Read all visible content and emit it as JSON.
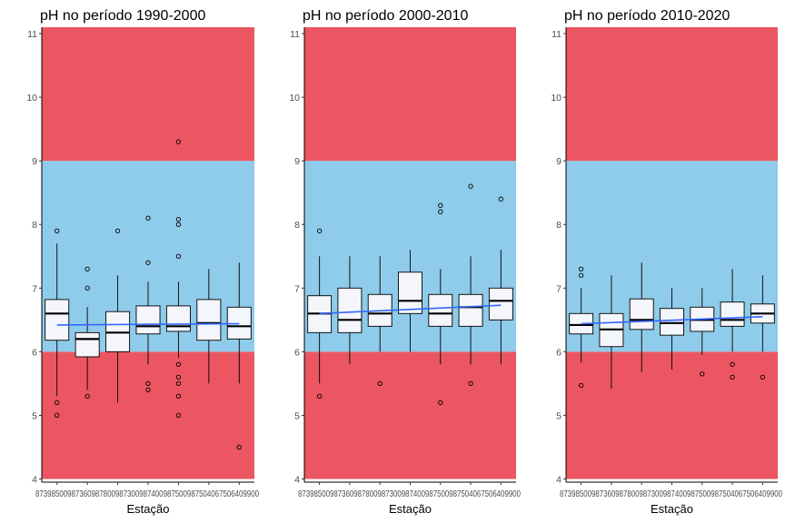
{
  "chart_data": {
    "type": "box",
    "colors": {
      "unsafe_band": "#EB5662",
      "safe_band": "#8FCBEA",
      "box_fill": "#F4F6FC",
      "trend_line": "#3366FF"
    },
    "bands": [
      {
        "from": 4,
        "to": 6,
        "color": "#EB5662"
      },
      {
        "from": 6,
        "to": 9,
        "color": "#8FCBEA"
      },
      {
        "from": 9,
        "to": 11.1,
        "color": "#EB5662"
      }
    ],
    "y_axis": {
      "ylim": [
        3.95,
        11.1
      ],
      "ticks": [
        "4",
        "5",
        "6",
        "7",
        "8",
        "9",
        "10",
        "11"
      ]
    },
    "xlabel": "Estação",
    "x_tick_text": "87398500987360987800987300987400987500987504067506409900",
    "panels": [
      {
        "title": "pH no período 1990-2000",
        "trend": [
          6.42,
          6.44
        ],
        "stations": [
          {
            "lower_whisker": 5.3,
            "q1": 6.18,
            "median": 6.6,
            "q3": 6.82,
            "upper_whisker": 7.7,
            "outliers": [
              5.0,
              5.2,
              7.9
            ]
          },
          {
            "lower_whisker": 5.4,
            "q1": 5.92,
            "median": 6.2,
            "q3": 6.3,
            "upper_whisker": 6.7,
            "outliers": [
              5.3,
              7.0,
              7.3
            ]
          },
          {
            "lower_whisker": 5.2,
            "q1": 6.0,
            "median": 6.3,
            "q3": 6.63,
            "upper_whisker": 7.2,
            "outliers": [
              7.9
            ]
          },
          {
            "lower_whisker": 5.8,
            "q1": 6.28,
            "median": 6.4,
            "q3": 6.72,
            "upper_whisker": 7.1,
            "outliers": [
              5.4,
              5.5,
              7.4,
              8.1
            ]
          },
          {
            "lower_whisker": 5.9,
            "q1": 6.32,
            "median": 6.4,
            "q3": 6.72,
            "upper_whisker": 7.1,
            "outliers": [
              5.0,
              5.3,
              5.5,
              5.6,
              5.8,
              7.5,
              8.0,
              8.08,
              9.3
            ]
          },
          {
            "lower_whisker": 5.5,
            "q1": 6.18,
            "median": 6.45,
            "q3": 6.82,
            "upper_whisker": 7.3,
            "outliers": []
          },
          {
            "lower_whisker": 5.5,
            "q1": 6.2,
            "median": 6.4,
            "q3": 6.7,
            "upper_whisker": 7.4,
            "outliers": [
              4.5
            ]
          }
        ]
      },
      {
        "title": "pH no período 2000-2010",
        "trend": [
          6.6,
          6.73
        ],
        "stations": [
          {
            "lower_whisker": 5.5,
            "q1": 6.3,
            "median": 6.6,
            "q3": 6.88,
            "upper_whisker": 7.5,
            "outliers": [
              5.3,
              7.9
            ]
          },
          {
            "lower_whisker": 5.8,
            "q1": 6.3,
            "median": 6.5,
            "q3": 7.0,
            "upper_whisker": 7.5,
            "outliers": []
          },
          {
            "lower_whisker": 6.0,
            "q1": 6.4,
            "median": 6.6,
            "q3": 6.9,
            "upper_whisker": 7.5,
            "outliers": [
              5.5
            ]
          },
          {
            "lower_whisker": 6.0,
            "q1": 6.6,
            "median": 6.8,
            "q3": 7.25,
            "upper_whisker": 7.6,
            "outliers": []
          },
          {
            "lower_whisker": 5.8,
            "q1": 6.4,
            "median": 6.6,
            "q3": 6.9,
            "upper_whisker": 7.3,
            "outliers": [
              5.2,
              8.2,
              8.3
            ]
          },
          {
            "lower_whisker": 5.8,
            "q1": 6.4,
            "median": 6.7,
            "q3": 6.9,
            "upper_whisker": 7.5,
            "outliers": [
              5.5,
              8.6
            ]
          },
          {
            "lower_whisker": 5.8,
            "q1": 6.5,
            "median": 6.8,
            "q3": 7.0,
            "upper_whisker": 7.6,
            "outliers": [
              8.4
            ]
          }
        ]
      },
      {
        "title": "pH no período 2010-2020",
        "trend": [
          6.44,
          6.55
        ],
        "stations": [
          {
            "lower_whisker": 5.83,
            "q1": 6.28,
            "median": 6.42,
            "q3": 6.6,
            "upper_whisker": 7.0,
            "outliers": [
              5.47,
              7.2,
              7.3
            ]
          },
          {
            "lower_whisker": 5.42,
            "q1": 6.08,
            "median": 6.35,
            "q3": 6.6,
            "upper_whisker": 7.2,
            "outliers": []
          },
          {
            "lower_whisker": 5.68,
            "q1": 6.35,
            "median": 6.5,
            "q3": 6.83,
            "upper_whisker": 7.4,
            "outliers": []
          },
          {
            "lower_whisker": 5.72,
            "q1": 6.26,
            "median": 6.45,
            "q3": 6.68,
            "upper_whisker": 7.0,
            "outliers": []
          },
          {
            "lower_whisker": 5.95,
            "q1": 6.32,
            "median": 6.5,
            "q3": 6.7,
            "upper_whisker": 7.0,
            "outliers": [
              5.65
            ]
          },
          {
            "lower_whisker": 6.0,
            "q1": 6.4,
            "median": 6.5,
            "q3": 6.78,
            "upper_whisker": 7.3,
            "outliers": [
              5.6,
              5.8
            ]
          },
          {
            "lower_whisker": 6.0,
            "q1": 6.45,
            "median": 6.6,
            "q3": 6.75,
            "upper_whisker": 7.2,
            "outliers": [
              5.6
            ]
          }
        ]
      }
    ]
  }
}
